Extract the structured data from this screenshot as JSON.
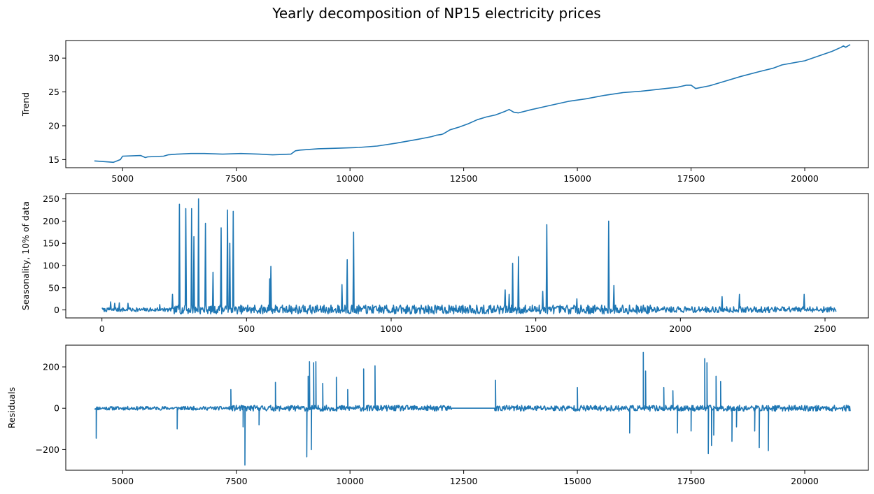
{
  "figure": {
    "title": "Yearly decomposition of NP15 electricity prices",
    "line_color": "#1f77b4"
  },
  "chart_data": [
    {
      "type": "line",
      "id": "trend",
      "ylabel": "Trend",
      "xlim": [
        3750,
        21400
      ],
      "ylim": [
        13.8,
        32.6
      ],
      "xticks": [
        5000,
        7500,
        10000,
        12500,
        15000,
        17500,
        20000
      ],
      "xtick_labels": [
        "5000",
        "7500",
        "10000",
        "12500",
        "15000",
        "17500",
        "20000"
      ],
      "yticks": [
        15,
        20,
        25,
        30
      ],
      "ytick_labels": [
        "15",
        "20",
        "25",
        "30"
      ],
      "series": [
        {
          "x": [
            4380,
            4600,
            4800,
            4950,
            5000,
            5400,
            5500,
            5550,
            5900,
            6000,
            6200,
            6500,
            6800,
            7200,
            7600,
            8000,
            8300,
            8700,
            8800,
            8900,
            9300,
            9800,
            10200,
            10600,
            11000,
            11500,
            11800,
            11900,
            12000,
            12050,
            12100,
            12200,
            12400,
            12600,
            12800,
            13000,
            13200,
            13400,
            13500,
            13600,
            13700,
            14000,
            14400,
            14800,
            15200,
            15600,
            16000,
            16400,
            16800,
            17200,
            17400,
            17500,
            17600,
            17900,
            18200,
            18600,
            19000,
            19300,
            19500,
            20000,
            20300,
            20600,
            20800,
            20850,
            20900,
            21000
          ],
          "y": [
            14.8,
            14.7,
            14.6,
            15.0,
            15.5,
            15.6,
            15.3,
            15.4,
            15.5,
            15.7,
            15.8,
            15.9,
            15.9,
            15.8,
            15.9,
            15.8,
            15.7,
            15.8,
            16.3,
            16.4,
            16.6,
            16.7,
            16.8,
            17.0,
            17.4,
            18.0,
            18.4,
            18.6,
            18.7,
            18.8,
            19.0,
            19.4,
            19.8,
            20.3,
            20.9,
            21.3,
            21.6,
            22.1,
            22.4,
            22.0,
            21.9,
            22.4,
            23.0,
            23.6,
            24.0,
            24.5,
            24.9,
            25.1,
            25.4,
            25.7,
            26.0,
            26.0,
            25.5,
            25.9,
            26.5,
            27.3,
            28.0,
            28.5,
            29.0,
            29.6,
            30.3,
            31.0,
            31.6,
            31.8,
            31.6,
            32.0
          ]
        }
      ]
    },
    {
      "type": "line",
      "id": "seasonality",
      "ylabel": "Seasonality, 10% of data",
      "xlim": [
        -125,
        2650
      ],
      "ylim": [
        -18,
        262
      ],
      "xticks": [
        0,
        500,
        1000,
        1500,
        2000,
        2500
      ],
      "xtick_labels": [
        "0",
        "500",
        "1000",
        "1500",
        "2000",
        "2500"
      ],
      "yticks": [
        0,
        50,
        100,
        150,
        200,
        250
      ],
      "ytick_labels": [
        "0",
        "50",
        "100",
        "150",
        "200",
        "250"
      ],
      "noise": {
        "n": 2540,
        "amp_low": 4,
        "amp_mid": 9,
        "amp_high": 6
      },
      "spikes": [
        {
          "x": 30,
          "v": 18
        },
        {
          "x": 45,
          "v": 15
        },
        {
          "x": 60,
          "v": 16
        },
        {
          "x": 90,
          "v": 15
        },
        {
          "x": 200,
          "v": 12
        },
        {
          "x": 245,
          "v": 35
        },
        {
          "x": 268,
          "v": 238
        },
        {
          "x": 290,
          "v": 228
        },
        {
          "x": 310,
          "v": 228
        },
        {
          "x": 318,
          "v": 165
        },
        {
          "x": 335,
          "v": 250
        },
        {
          "x": 358,
          "v": 195
        },
        {
          "x": 385,
          "v": 85
        },
        {
          "x": 412,
          "v": 185
        },
        {
          "x": 435,
          "v": 225
        },
        {
          "x": 442,
          "v": 150
        },
        {
          "x": 455,
          "v": 222
        },
        {
          "x": 580,
          "v": 70
        },
        {
          "x": 585,
          "v": 98
        },
        {
          "x": 830,
          "v": 57
        },
        {
          "x": 848,
          "v": 113
        },
        {
          "x": 870,
          "v": 175
        },
        {
          "x": 1395,
          "v": 45
        },
        {
          "x": 1408,
          "v": 35
        },
        {
          "x": 1420,
          "v": 105
        },
        {
          "x": 1440,
          "v": 120
        },
        {
          "x": 1525,
          "v": 42
        },
        {
          "x": 1538,
          "v": 192
        },
        {
          "x": 1642,
          "v": 25
        },
        {
          "x": 1752,
          "v": 200
        },
        {
          "x": 1770,
          "v": 55
        },
        {
          "x": 2145,
          "v": 30
        },
        {
          "x": 2205,
          "v": 35
        },
        {
          "x": 2428,
          "v": 35
        }
      ]
    },
    {
      "type": "line",
      "id": "residuals",
      "ylabel": "Residuals",
      "xlim": [
        3750,
        21400
      ],
      "ylim": [
        -300,
        305
      ],
      "xticks": [
        5000,
        7500,
        10000,
        12500,
        15000,
        17500,
        20000
      ],
      "xtick_labels": [
        "5000",
        "7500",
        "10000",
        "12500",
        "15000",
        "17500",
        "20000"
      ],
      "yticks": [
        -200,
        0,
        200
      ],
      "ytick_labels": [
        "−200",
        "0",
        "200"
      ],
      "gap": [
        12230,
        13180
      ],
      "spikes": [
        {
          "x": 4420,
          "v": -145
        },
        {
          "x": 6200,
          "v": -100
        },
        {
          "x": 7380,
          "v": 90
        },
        {
          "x": 7650,
          "v": -90
        },
        {
          "x": 7690,
          "v": -275
        },
        {
          "x": 8360,
          "v": 125
        },
        {
          "x": 8000,
          "v": -80
        },
        {
          "x": 9050,
          "v": -235
        },
        {
          "x": 9080,
          "v": 155
        },
        {
          "x": 9110,
          "v": 225
        },
        {
          "x": 9150,
          "v": -200
        },
        {
          "x": 9200,
          "v": 220
        },
        {
          "x": 9250,
          "v": 225
        },
        {
          "x": 9400,
          "v": 120
        },
        {
          "x": 9700,
          "v": 150
        },
        {
          "x": 9950,
          "v": 90
        },
        {
          "x": 10300,
          "v": 190
        },
        {
          "x": 10550,
          "v": 205
        },
        {
          "x": 13200,
          "v": 135
        },
        {
          "x": 15000,
          "v": 100
        },
        {
          "x": 16150,
          "v": -120
        },
        {
          "x": 16450,
          "v": 270
        },
        {
          "x": 16500,
          "v": 180
        },
        {
          "x": 16900,
          "v": 100
        },
        {
          "x": 17100,
          "v": 85
        },
        {
          "x": 17200,
          "v": -120
        },
        {
          "x": 17500,
          "v": -110
        },
        {
          "x": 17800,
          "v": 240
        },
        {
          "x": 17850,
          "v": 220
        },
        {
          "x": 17880,
          "v": -220
        },
        {
          "x": 17950,
          "v": -180
        },
        {
          "x": 18000,
          "v": -130
        },
        {
          "x": 18050,
          "v": 155
        },
        {
          "x": 18150,
          "v": 130
        },
        {
          "x": 18400,
          "v": -160
        },
        {
          "x": 18500,
          "v": -90
        },
        {
          "x": 18900,
          "v": -110
        },
        {
          "x": 19000,
          "v": -190
        },
        {
          "x": 19200,
          "v": -205
        }
      ]
    }
  ]
}
